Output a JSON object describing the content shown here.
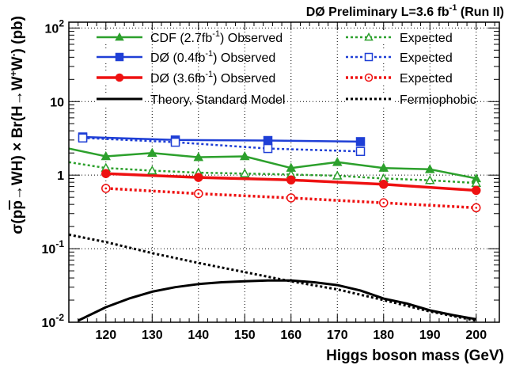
{
  "chart_data": {
    "type": "line",
    "title_main": "DØ Preliminary L=3.6 fb",
    "title_sup": "-1",
    "title_suffix": " (Run II)",
    "xlabel": "Higgs boson mass (GeV)",
    "ylabel_parts": [
      "σ(p",
      "p",
      "→WH) × Br(H→W",
      "+",
      "W",
      "-",
      ") (pb)"
    ],
    "xlim": [
      112,
      205
    ],
    "ylim": [
      0.01,
      120
    ],
    "yscale": "log",
    "xticks": [
      120,
      130,
      140,
      150,
      160,
      170,
      180,
      190,
      200
    ],
    "yticks": [
      {
        "value": 0.01,
        "base": "10",
        "exp": "-2"
      },
      {
        "value": 0.1,
        "base": "10",
        "exp": "-1"
      },
      {
        "value": 1,
        "base": "1",
        "exp": ""
      },
      {
        "value": 10,
        "base": "10",
        "exp": ""
      },
      {
        "value": 100,
        "base": "10",
        "exp": "2"
      }
    ],
    "grid": true,
    "legend_position": "top",
    "series": [
      {
        "name": "CDF (2.7fb-1) Observed",
        "label_text": "CDF (2.7fb",
        "label_sup": "-1",
        "label_suffix": ") Observed",
        "color": "#2ca02c",
        "dash": "solid",
        "width": 2.5,
        "marker": "triangle",
        "marker_fill": true,
        "x": [
          112,
          120,
          130,
          140,
          150,
          160,
          170,
          180,
          190,
          200
        ],
        "y": [
          2.3,
          1.8,
          2.0,
          1.75,
          1.8,
          1.25,
          1.5,
          1.25,
          1.2,
          0.9
        ],
        "marker_x": [
          120,
          130,
          140,
          150,
          160,
          170,
          180,
          190,
          200
        ]
      },
      {
        "name": "Expected",
        "label_text": "Expected",
        "color": "#2ca02c",
        "dash": "dotted",
        "width": 2.5,
        "marker": "triangle",
        "marker_fill": false,
        "x": [
          112,
          120,
          130,
          140,
          150,
          160,
          170,
          180,
          190,
          200
        ],
        "y": [
          1.5,
          1.25,
          1.15,
          1.08,
          1.05,
          1.02,
          0.98,
          0.9,
          0.85,
          0.78
        ],
        "marker_x": [
          120,
          130,
          140,
          150,
          160,
          170,
          180,
          190,
          200
        ]
      },
      {
        "name": "DØ (0.4fb-1) Observed",
        "label_text": "DØ    (0.4fb",
        "label_sup": "-1",
        "label_suffix": ") Observed",
        "color": "#1f3fd6",
        "dash": "solid",
        "width": 2.5,
        "marker": "square",
        "marker_fill": true,
        "x": [
          115,
          135,
          155,
          175
        ],
        "y": [
          3.3,
          3.0,
          2.95,
          2.85
        ],
        "marker_x": [
          115,
          135,
          155,
          175
        ]
      },
      {
        "name": "Expected",
        "label_text": "Expected",
        "color": "#1f3fd6",
        "dash": "dotted",
        "width": 2.5,
        "marker": "square",
        "marker_fill": false,
        "x": [
          115,
          135,
          155,
          175
        ],
        "y": [
          3.2,
          2.8,
          2.3,
          2.1
        ],
        "marker_x": [
          115,
          135,
          155,
          175
        ]
      },
      {
        "name": "DØ (3.6fb-1) Observed",
        "label_text": "DØ    (3.6fb",
        "label_sup": "-1",
        "label_suffix": ") Observed",
        "color": "#ee1111",
        "dash": "solid",
        "width": 3.5,
        "marker": "circle",
        "marker_fill": true,
        "x": [
          120,
          140,
          160,
          180,
          200
        ],
        "y": [
          1.05,
          0.93,
          0.86,
          0.75,
          0.62
        ],
        "marker_x": [
          120,
          140,
          160,
          180,
          200
        ]
      },
      {
        "name": "Expected",
        "label_text": "Expected",
        "color": "#ee1111",
        "dash": "dotted",
        "width": 3.5,
        "marker": "circle",
        "marker_fill": false,
        "x": [
          120,
          140,
          160,
          180,
          200
        ],
        "y": [
          0.66,
          0.56,
          0.49,
          0.42,
          0.36
        ],
        "marker_x": [
          120,
          140,
          160,
          180,
          200
        ]
      },
      {
        "name": "Theory, Standard Model",
        "label_text": "Theory, Standard Model",
        "color": "#000000",
        "dash": "solid",
        "width": 3,
        "marker": "none",
        "x": [
          114,
          120,
          125,
          130,
          135,
          140,
          145,
          150,
          155,
          160,
          165,
          170,
          175,
          180,
          185,
          190,
          195,
          200
        ],
        "y": [
          0.0105,
          0.016,
          0.021,
          0.026,
          0.03,
          0.033,
          0.035,
          0.036,
          0.037,
          0.037,
          0.035,
          0.032,
          0.027,
          0.021,
          0.018,
          0.0145,
          0.0125,
          0.011
        ],
        "marker_x": []
      },
      {
        "name": "Fermiophobic",
        "label_text": "Fermiophobic",
        "color": "#000000",
        "dash": "dotted",
        "width": 3,
        "marker": "none",
        "x": [
          112,
          120,
          130,
          140,
          150,
          160,
          170,
          180,
          190,
          200
        ],
        "y": [
          0.155,
          0.123,
          0.087,
          0.064,
          0.048,
          0.036,
          0.028,
          0.02,
          0.014,
          0.0105
        ],
        "marker_x": []
      }
    ]
  }
}
